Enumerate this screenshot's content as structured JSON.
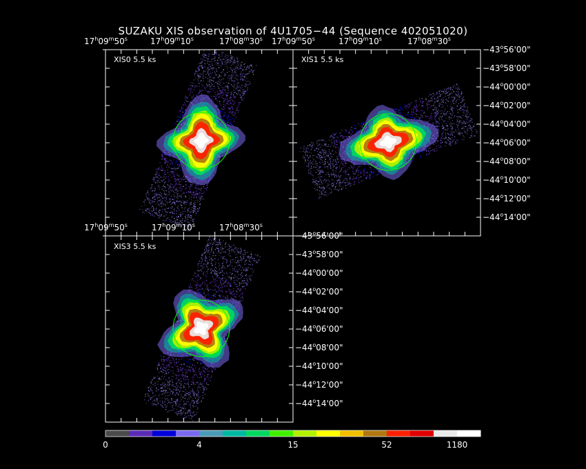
{
  "title": "SUZAKU XIS observation of 4U1705−44  (Sequence 402051020)",
  "panels": [
    {
      "label": "XIS0 5.5 ks"
    },
    {
      "label": "XIS1 5.5 ks"
    },
    {
      "label": "XIS3 5.5 ks"
    }
  ],
  "ra_labels": {
    "top_left": [
      "17h09m50s",
      "17h09m10s",
      "17h08m30s"
    ],
    "top_right": [
      "17h09m50s",
      "17h09m10s",
      "17h08m30s"
    ],
    "middle": [
      "17h09m50s",
      "17h09m10s",
      "17h08m30s"
    ]
  },
  "dec_labels": [
    "−43°56'00\"",
    "−43°58'00\"",
    "−44°00'00\"",
    "−44°02'00\"",
    "−44°04'00\"",
    "−44°06'00\"",
    "−44°08'00\"",
    "−44°10'00\"",
    "−44°12'00\"",
    "−44°14'00\""
  ],
  "colorbar": {
    "colors": [
      "#4a4a4a",
      "#5a2ab8",
      "#0000d8",
      "#7a6af0",
      "#4a9ab8",
      "#00b8a0",
      "#00d860",
      "#40f000",
      "#b0f000",
      "#ffff00",
      "#f0c000",
      "#b07810",
      "#ff2000",
      "#e00000",
      "#e8e8e8",
      "#ffffff"
    ],
    "tick_labels": [
      "0",
      "4",
      "15",
      "52",
      "1180"
    ]
  },
  "region_color": "#00ff00"
}
